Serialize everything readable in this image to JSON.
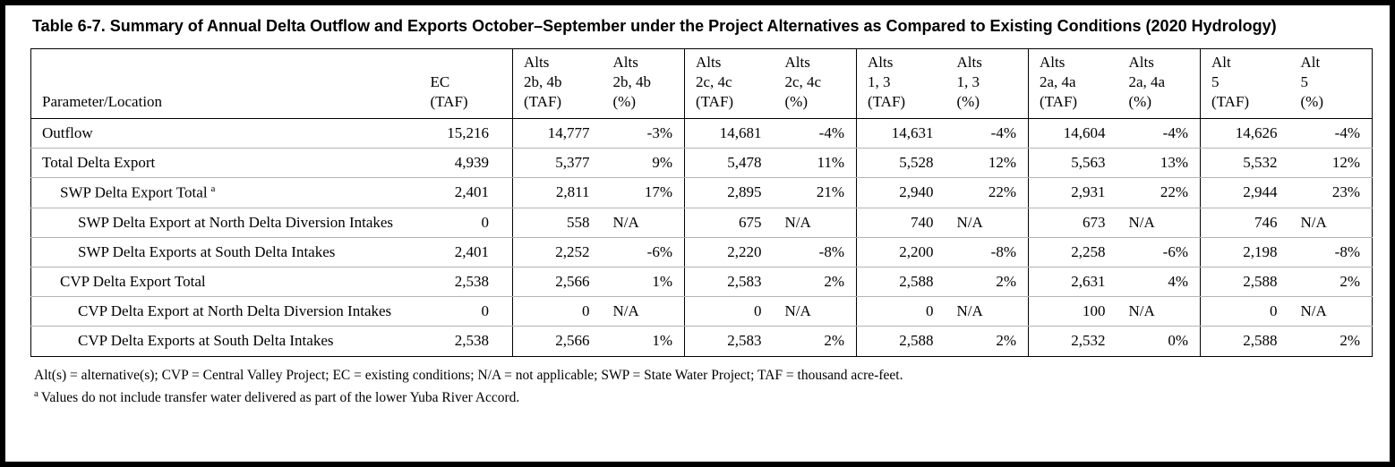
{
  "title": "Table 6-7. Summary of Annual Delta Outflow and Exports October–September under the Project Alternatives as Compared to Existing Conditions (2020 Hydrology)",
  "table": {
    "header": [
      {
        "lines": [
          "Parameter/Location"
        ]
      },
      {
        "lines": [
          "EC",
          "(TAF)"
        ]
      },
      {
        "lines": [
          "Alts",
          "2b, 4b",
          "(TAF)"
        ]
      },
      {
        "lines": [
          "Alts",
          "2b, 4b",
          "(%)"
        ]
      },
      {
        "lines": [
          "Alts",
          "2c, 4c",
          "(TAF)"
        ]
      },
      {
        "lines": [
          "Alts",
          "2c, 4c",
          "(%)"
        ]
      },
      {
        "lines": [
          "Alts",
          "1, 3",
          "(TAF)"
        ]
      },
      {
        "lines": [
          "Alts",
          "1, 3",
          "(%)"
        ]
      },
      {
        "lines": [
          "Alts",
          "2a, 4a",
          "(TAF)"
        ]
      },
      {
        "lines": [
          "Alts",
          "2a, 4a",
          "(%)"
        ]
      },
      {
        "lines": [
          "Alt",
          "5",
          "(TAF)"
        ]
      },
      {
        "lines": [
          "Alt",
          "5",
          "(%)"
        ]
      }
    ],
    "rows": [
      {
        "label": "Outflow",
        "sup": "",
        "indent": 0,
        "values": [
          "15,216",
          "14,777",
          "-3%",
          "14,681",
          "-4%",
          "14,631",
          "-4%",
          "14,604",
          "-4%",
          "14,626",
          "-4%"
        ]
      },
      {
        "label": "Total Delta Export",
        "sup": "",
        "indent": 0,
        "values": [
          "4,939",
          "5,377",
          "9%",
          "5,478",
          "11%",
          "5,528",
          "12%",
          "5,563",
          "13%",
          "5,532",
          "12%"
        ]
      },
      {
        "label": "SWP Delta Export Total",
        "sup": "a",
        "indent": 1,
        "values": [
          "2,401",
          "2,811",
          "17%",
          "2,895",
          "21%",
          "2,940",
          "22%",
          "2,931",
          "22%",
          "2,944",
          "23%"
        ]
      },
      {
        "label": "SWP Delta Export at North Delta Diversion Intakes",
        "sup": "",
        "indent": 2,
        "values": [
          "0",
          "558",
          "N/A",
          "675",
          "N/A",
          "740",
          "N/A",
          "673",
          "N/A",
          "746",
          "N/A"
        ]
      },
      {
        "label": "SWP Delta Exports at South Delta Intakes",
        "sup": "",
        "indent": 2,
        "values": [
          "2,401",
          "2,252",
          "-6%",
          "2,220",
          "-8%",
          "2,200",
          "-8%",
          "2,258",
          "-6%",
          "2,198",
          "-8%"
        ]
      },
      {
        "label": "CVP Delta Export Total",
        "sup": "",
        "indent": 1,
        "values": [
          "2,538",
          "2,566",
          "1%",
          "2,583",
          "2%",
          "2,588",
          "2%",
          "2,631",
          "4%",
          "2,588",
          "2%"
        ]
      },
      {
        "label": "CVP Delta Export at North Delta Diversion Intakes",
        "sup": "",
        "indent": 2,
        "values": [
          "0",
          "0",
          "N/A",
          "0",
          "N/A",
          "0",
          "N/A",
          "100",
          "N/A",
          "0",
          "N/A"
        ]
      },
      {
        "label": "CVP Delta Exports at South Delta Intakes",
        "sup": "",
        "indent": 2,
        "values": [
          "2,538",
          "2,566",
          "1%",
          "2,583",
          "2%",
          "2,588",
          "2%",
          "2,532",
          "0%",
          "2,588",
          "2%"
        ]
      }
    ]
  },
  "footnotes": {
    "abbreviations": "Alt(s) = alternative(s); CVP = Central Valley Project; EC = existing conditions; N/A = not applicable; SWP = State Water Project; TAF = thousand acre-feet.",
    "note_marker": "a",
    "note_text": "Values do not include transfer water delivered as part of the lower Yuba River Accord."
  }
}
